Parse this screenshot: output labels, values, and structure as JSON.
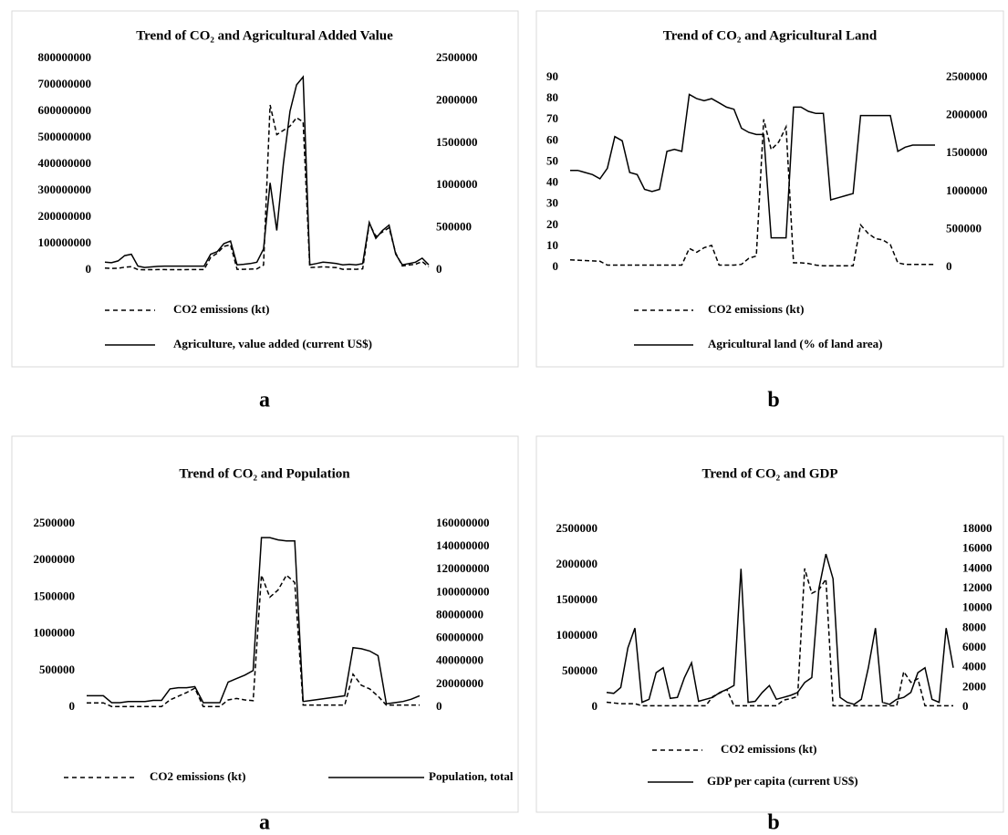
{
  "chart_data": [
    {
      "type": "line",
      "title": "Trend of CO₂ and Agricultural Added Value",
      "caption": "a",
      "ylim": [
        0,
        800000000
      ],
      "yticks": [
        0,
        100000000,
        200000000,
        300000000,
        400000000,
        500000000,
        600000000,
        700000000,
        800000000
      ],
      "y2lim": [
        0,
        2500000
      ],
      "y2ticks": [
        0,
        500000,
        1000000,
        1500000,
        2000000,
        2500000
      ],
      "series": [
        {
          "name": "CO2 emissions (kt)",
          "axis": "y2",
          "color": "#000000",
          "style": "dashed",
          "values": [
            25000,
            20000,
            22000,
            35000,
            40000,
            5000,
            4000,
            5000,
            6000,
            6000,
            5000,
            5000,
            5000,
            6000,
            6000,
            6000,
            150000,
            200000,
            280000,
            300000,
            10000,
            10000,
            12000,
            15000,
            60000,
            1950000,
            1600000,
            1650000,
            1700000,
            1800000,
            1750000,
            30000,
            35000,
            40000,
            35000,
            30000,
            10000,
            12000,
            10000,
            15000,
            550000,
            400000,
            450000,
            500000,
            200000,
            50000,
            60000,
            70000,
            100000,
            40000
          ]
        },
        {
          "name": "Agriculture, value added (current US$)",
          "axis": "y",
          "color": "#000000",
          "style": "solid",
          "values": [
            30000000,
            28000000,
            35000000,
            55000000,
            60000000,
            15000000,
            10000000,
            12000000,
            14000000,
            15000000,
            15000000,
            15000000,
            15000000,
            15000000,
            15000000,
            15000000,
            60000000,
            70000000,
            100000000,
            110000000,
            20000000,
            22000000,
            25000000,
            30000000,
            80000000,
            330000000,
            150000000,
            400000000,
            600000000,
            700000000,
            730000000,
            20000000,
            25000000,
            30000000,
            28000000,
            25000000,
            20000000,
            22000000,
            20000000,
            25000000,
            180000000,
            120000000,
            150000000,
            170000000,
            60000000,
            20000000,
            25000000,
            30000000,
            45000000,
            20000000
          ]
        }
      ]
    },
    {
      "type": "line",
      "title": "Trend of CO₂ and Agricultural Land",
      "caption": "b",
      "ylim": [
        0,
        90
      ],
      "yticks": [
        0,
        10,
        20,
        30,
        40,
        50,
        60,
        70,
        80,
        90
      ],
      "y2lim": [
        0,
        2500000
      ],
      "y2ticks": [
        0,
        500000,
        1000000,
        1500000,
        2000000,
        2500000
      ],
      "series": [
        {
          "name": "CO2 emissions (kt)",
          "axis": "y2",
          "color": "#000000",
          "style": "dashed",
          "values": [
            100000,
            95000,
            90000,
            85000,
            80000,
            30000,
            30000,
            30000,
            30000,
            30000,
            30000,
            30000,
            30000,
            30000,
            30000,
            30000,
            250000,
            200000,
            260000,
            290000,
            30000,
            30000,
            30000,
            40000,
            120000,
            150000,
            1950000,
            1550000,
            1650000,
            1850000,
            60000,
            60000,
            50000,
            30000,
            20000,
            20000,
            20000,
            20000,
            20000,
            560000,
            450000,
            380000,
            360000,
            300000,
            60000,
            40000,
            40000,
            40000,
            40000,
            40000
          ]
        },
        {
          "name": "Agricultural land (% of land area)",
          "axis": "y",
          "color": "#000000",
          "style": "solid",
          "values": [
            46,
            46,
            45,
            44,
            42,
            47,
            62,
            60,
            45,
            44,
            37,
            36,
            37,
            55,
            56,
            55,
            82,
            80,
            79,
            80,
            78,
            76,
            75,
            66,
            64,
            63,
            63,
            14,
            14,
            14,
            76,
            76,
            74,
            73,
            73,
            32,
            33,
            34,
            35,
            72,
            72,
            72,
            72,
            72,
            55,
            57,
            58,
            58,
            58,
            58
          ]
        }
      ]
    },
    {
      "type": "line",
      "title": "Trend of CO₂ and Population",
      "caption": "a",
      "ylim": [
        0,
        2500000
      ],
      "yticks": [
        0,
        500000,
        1000000,
        1500000,
        2000000,
        2500000
      ],
      "y2lim": [
        0,
        160000000
      ],
      "y2ticks": [
        0,
        20000000,
        40000000,
        60000000,
        80000000,
        100000000,
        120000000,
        140000000,
        160000000
      ],
      "series": [
        {
          "name": "CO2 emissions (kt)",
          "axis": "y",
          "color": "#000000",
          "style": "dashed",
          "values": [
            60000,
            60000,
            60000,
            10000,
            10000,
            10000,
            10000,
            10000,
            10000,
            10000,
            100000,
            150000,
            200000,
            260000,
            10000,
            10000,
            10000,
            100000,
            120000,
            100000,
            90000,
            1800000,
            1500000,
            1600000,
            1800000,
            1700000,
            30000,
            30000,
            30000,
            30000,
            30000,
            30000,
            450000,
            300000,
            250000,
            150000,
            30000,
            30000,
            30000,
            30000,
            30000
          ]
        },
        {
          "name": "Population, total",
          "axis": "y2",
          "color": "#000000",
          "style": "solid",
          "values": [
            10000000,
            10000000,
            10000000,
            4000000,
            4000000,
            5000000,
            5000000,
            5000000,
            6000000,
            6000000,
            16000000,
            17000000,
            17000000,
            18000000,
            4000000,
            4000000,
            4000000,
            22000000,
            25000000,
            28000000,
            32000000,
            148000000,
            148000000,
            146000000,
            145000000,
            145000000,
            5000000,
            6000000,
            7000000,
            8000000,
            9000000,
            10000000,
            52000000,
            51000000,
            49000000,
            45000000,
            3000000,
            4000000,
            5000000,
            7000000,
            10000000
          ]
        }
      ]
    },
    {
      "type": "line",
      "title": "Trend of CO₂ and GDP",
      "caption": "b",
      "ylim": [
        0,
        2500000
      ],
      "yticks": [
        0,
        500000,
        1000000,
        1500000,
        2000000,
        2500000
      ],
      "y2lim": [
        0,
        18000
      ],
      "y2ticks": [
        0,
        2000,
        4000,
        6000,
        8000,
        10000,
        12000,
        14000,
        16000,
        18000
      ],
      "series": [
        {
          "name": "CO2 emissions (kt)",
          "axis": "y",
          "color": "#000000",
          "style": "dashed",
          "values": [
            70000,
            60000,
            50000,
            50000,
            50000,
            20000,
            20000,
            20000,
            20000,
            20000,
            20000,
            20000,
            20000,
            20000,
            20000,
            150000,
            200000,
            250000,
            20000,
            20000,
            20000,
            20000,
            20000,
            20000,
            20000,
            100000,
            120000,
            150000,
            1950000,
            1600000,
            1650000,
            1800000,
            20000,
            20000,
            20000,
            20000,
            20000,
            20000,
            20000,
            20000,
            20000,
            20000,
            500000,
            350000,
            400000,
            20000,
            20000,
            20000,
            20000,
            20000
          ]
        },
        {
          "name": "GDP per capita (current US$)",
          "axis": "y2",
          "color": "#000000",
          "style": "solid",
          "values": [
            1500,
            1400,
            2000,
            6000,
            8000,
            500,
            800,
            3500,
            4000,
            900,
            1000,
            3000,
            4500,
            600,
            800,
            1000,
            1500,
            1800,
            2200,
            14000,
            500,
            600,
            1500,
            2200,
            800,
            1000,
            1200,
            1500,
            2500,
            3000,
            12000,
            15500,
            13000,
            1000,
            500,
            300,
            800,
            4000,
            8000,
            500,
            300,
            800,
            1000,
            1500,
            3500,
            4000,
            800,
            500,
            8000,
            4000
          ]
        }
      ]
    }
  ]
}
